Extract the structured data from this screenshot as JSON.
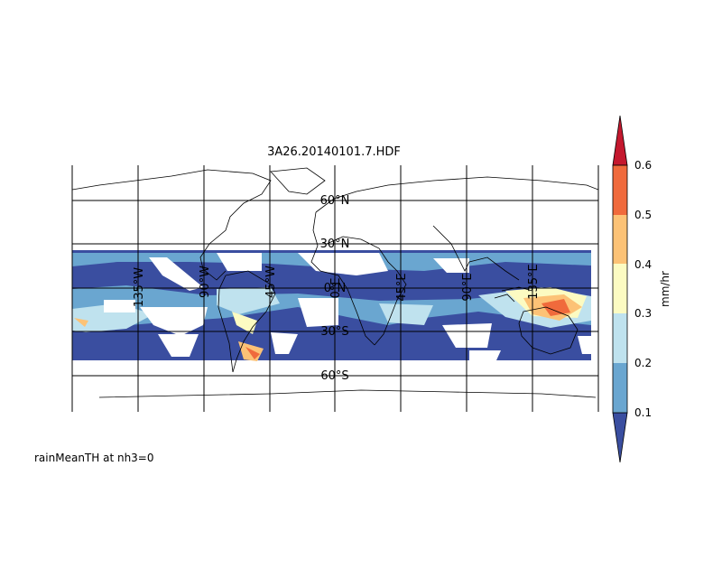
{
  "figure": {
    "title": "3A26.20140101.7.HDF",
    "variable_label": "rainMeanTH at nh3=0"
  },
  "map": {
    "projection": "equirectangular",
    "lon_range": [
      -180,
      180
    ],
    "lat_range": [
      -70,
      70
    ],
    "data_lat_range": [
      -40,
      40
    ],
    "meridians": [
      -135,
      -90,
      -45,
      0,
      45,
      90,
      135
    ],
    "parallels": [
      -60,
      -30,
      0,
      30,
      60
    ],
    "meridian_labels": [
      "135°W",
      "90°W",
      "45°W",
      "0°E",
      "45°E",
      "90°E",
      "135°E"
    ],
    "parallel_labels": [
      "60°S",
      "30°S",
      "0°N",
      "30°N",
      "60°N"
    ],
    "no_data_color": "#ffffff",
    "coastline_color": "#000000"
  },
  "colorbar": {
    "label": "mm/hr",
    "ticks": [
      "0.1",
      "0.2",
      "0.3",
      "0.4",
      "0.5",
      "0.6"
    ],
    "under_color": "#3a4ea0",
    "over_color": "#c4182e",
    "bins": [
      {
        "range": [
          0.1,
          0.2
        ],
        "color": "#6aa6d0"
      },
      {
        "range": [
          0.2,
          0.3
        ],
        "color": "#bfe2ee"
      },
      {
        "range": [
          0.3,
          0.4
        ],
        "color": "#fcfbc2"
      },
      {
        "range": [
          0.4,
          0.5
        ],
        "color": "#fcc276"
      },
      {
        "range": [
          0.5,
          0.6
        ],
        "color": "#f06a3c"
      }
    ]
  }
}
